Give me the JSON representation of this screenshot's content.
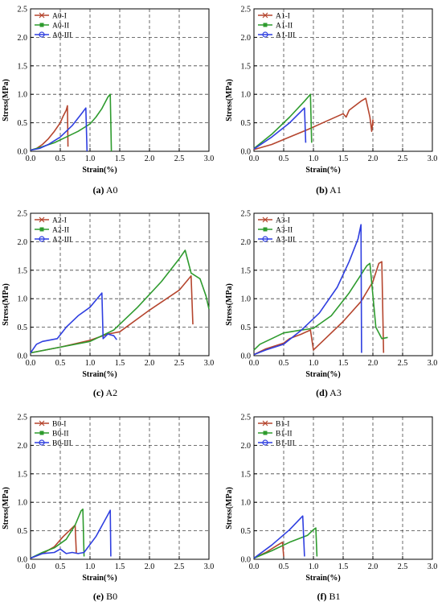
{
  "chart_data": [
    {
      "id": "A0",
      "type": "line",
      "caption_label": "(a)",
      "caption_name": "A0",
      "xlabel": "Strain(%)",
      "ylabel": "Stress(MPa)",
      "xlim": [
        0,
        3.0
      ],
      "ylim": [
        0,
        2.5
      ],
      "xticks": [
        "0.0",
        "0.5",
        "1.0",
        "1.5",
        "2.0",
        "2.5",
        "3.0"
      ],
      "yticks": [
        "0.0",
        "0.5",
        "1.0",
        "1.5",
        "2.0",
        "2.5"
      ],
      "grid": true,
      "legend_position": "top-left",
      "series": [
        {
          "name": "A0-I",
          "color": "#b5452e",
          "marker": "x",
          "points": [
            [
              0,
              0.02
            ],
            [
              0.1,
              0.05
            ],
            [
              0.2,
              0.12
            ],
            [
              0.3,
              0.22
            ],
            [
              0.4,
              0.35
            ],
            [
              0.5,
              0.5
            ],
            [
              0.55,
              0.62
            ],
            [
              0.6,
              0.72
            ],
            [
              0.62,
              0.8
            ],
            [
              0.63,
              0.08
            ]
          ]
        },
        {
          "name": "A0-II",
          "color": "#2e9b2e",
          "marker": "square",
          "points": [
            [
              0,
              0.02
            ],
            [
              0.2,
              0.08
            ],
            [
              0.4,
              0.15
            ],
            [
              0.6,
              0.25
            ],
            [
              0.8,
              0.35
            ],
            [
              1.0,
              0.48
            ],
            [
              1.1,
              0.6
            ],
            [
              1.2,
              0.75
            ],
            [
              1.3,
              0.95
            ],
            [
              1.34,
              1.0
            ],
            [
              1.36,
              0.0
            ]
          ]
        },
        {
          "name": "A0-III",
          "color": "#2f3fe0",
          "marker": "circle",
          "points": [
            [
              0,
              0.02
            ],
            [
              0.15,
              0.05
            ],
            [
              0.3,
              0.12
            ],
            [
              0.5,
              0.25
            ],
            [
              0.7,
              0.45
            ],
            [
              0.85,
              0.65
            ],
            [
              0.93,
              0.76
            ],
            [
              0.95,
              0.0
            ]
          ]
        }
      ]
    },
    {
      "id": "A1",
      "type": "line",
      "caption_label": "(b)",
      "caption_name": "A1",
      "xlabel": "Strain(%)",
      "ylabel": "Stress(MPa)",
      "xlim": [
        0,
        3.0
      ],
      "ylim": [
        0,
        2.5
      ],
      "xticks": [
        "0.0",
        "0.5",
        "1.0",
        "1.5",
        "2.0",
        "2.5",
        "3.0"
      ],
      "yticks": [
        "0.0",
        "0.5",
        "1.0",
        "1.5",
        "2.0",
        "2.5"
      ],
      "grid": true,
      "legend_position": "top-left",
      "series": [
        {
          "name": "A1-I",
          "color": "#b5452e",
          "marker": "x",
          "points": [
            [
              0,
              0.03
            ],
            [
              0.3,
              0.12
            ],
            [
              0.6,
              0.25
            ],
            [
              0.9,
              0.38
            ],
            [
              1.2,
              0.52
            ],
            [
              1.5,
              0.66
            ],
            [
              1.55,
              0.6
            ],
            [
              1.6,
              0.72
            ],
            [
              1.8,
              0.88
            ],
            [
              1.88,
              0.93
            ],
            [
              1.95,
              0.6
            ],
            [
              1.98,
              0.35
            ],
            [
              2.0,
              0.55
            ],
            [
              2.0,
              0.45
            ]
          ]
        },
        {
          "name": "A1-II",
          "color": "#2e9b2e",
          "marker": "square",
          "points": [
            [
              0,
              0.05
            ],
            [
              0.3,
              0.3
            ],
            [
              0.6,
              0.6
            ],
            [
              0.85,
              0.88
            ],
            [
              0.95,
              1.0
            ],
            [
              0.97,
              0.15
            ]
          ]
        },
        {
          "name": "A1-III",
          "color": "#2f3fe0",
          "marker": "circle",
          "points": [
            [
              0,
              0.04
            ],
            [
              0.3,
              0.25
            ],
            [
              0.6,
              0.5
            ],
            [
              0.85,
              0.76
            ],
            [
              0.87,
              0.15
            ]
          ]
        }
      ]
    },
    {
      "id": "A2",
      "type": "line",
      "caption_label": "(c)",
      "caption_name": "A2",
      "xlabel": "Strain(%)",
      "ylabel": "Stress(MPa)",
      "xlim": [
        0,
        3.0
      ],
      "ylim": [
        0,
        2.5
      ],
      "xticks": [
        "0.0",
        "0.5",
        "1.0",
        "1.5",
        "2.0",
        "2.5",
        "3.0"
      ],
      "yticks": [
        "0.0",
        "0.5",
        "1.0",
        "1.5",
        "2.0",
        "2.5"
      ],
      "grid": true,
      "legend_position": "top-left",
      "series": [
        {
          "name": "A2-I",
          "color": "#b5452e",
          "marker": "x",
          "points": [
            [
              0,
              0.05
            ],
            [
              0.5,
              0.15
            ],
            [
              1.0,
              0.27
            ],
            [
              1.3,
              0.38
            ],
            [
              1.5,
              0.42
            ],
            [
              2.0,
              0.8
            ],
            [
              2.5,
              1.15
            ],
            [
              2.7,
              1.4
            ],
            [
              2.73,
              0.55
            ]
          ]
        },
        {
          "name": "A2-II",
          "color": "#2e9b2e",
          "marker": "square",
          "points": [
            [
              0,
              0.05
            ],
            [
              0.5,
              0.15
            ],
            [
              1.0,
              0.25
            ],
            [
              1.4,
              0.45
            ],
            [
              1.8,
              0.85
            ],
            [
              2.2,
              1.3
            ],
            [
              2.5,
              1.7
            ],
            [
              2.6,
              1.85
            ],
            [
              2.7,
              1.45
            ],
            [
              2.85,
              1.35
            ],
            [
              2.95,
              1.05
            ],
            [
              3.0,
              0.82
            ]
          ]
        },
        {
          "name": "A2-III",
          "color": "#2f3fe0",
          "marker": "circle",
          "points": [
            [
              0,
              0.05
            ],
            [
              0.1,
              0.2
            ],
            [
              0.2,
              0.25
            ],
            [
              0.45,
              0.3
            ],
            [
              0.6,
              0.5
            ],
            [
              0.8,
              0.7
            ],
            [
              1.0,
              0.85
            ],
            [
              1.2,
              1.1
            ],
            [
              1.22,
              0.3
            ],
            [
              1.3,
              0.38
            ],
            [
              1.4,
              0.35
            ],
            [
              1.45,
              0.28
            ]
          ]
        }
      ]
    },
    {
      "id": "A3",
      "type": "line",
      "caption_label": "(d)",
      "caption_name": "A3",
      "xlabel": "Strain(%)",
      "ylabel": "Stress(MPa)",
      "xlim": [
        0,
        3.0
      ],
      "ylim": [
        0,
        2.5
      ],
      "xticks": [
        "0.0",
        "0.5",
        "1.0",
        "1.5",
        "2.0",
        "2.5",
        "3.0"
      ],
      "yticks": [
        "0.0",
        "0.5",
        "1.0",
        "1.5",
        "2.0",
        "2.5"
      ],
      "grid": true,
      "legend_position": "top-left",
      "series": [
        {
          "name": "A3-I",
          "color": "#b5452e",
          "marker": "x",
          "points": [
            [
              0,
              0.02
            ],
            [
              0.2,
              0.12
            ],
            [
              0.5,
              0.22
            ],
            [
              0.6,
              0.3
            ],
            [
              0.8,
              0.38
            ],
            [
              0.95,
              0.45
            ],
            [
              1.0,
              0.1
            ],
            [
              1.2,
              0.3
            ],
            [
              1.5,
              0.6
            ],
            [
              1.8,
              0.95
            ],
            [
              2.0,
              1.3
            ],
            [
              2.1,
              1.62
            ],
            [
              2.15,
              1.65
            ],
            [
              2.18,
              0.05
            ]
          ]
        },
        {
          "name": "A3-II",
          "color": "#2e9b2e",
          "marker": "square",
          "points": [
            [
              0,
              0.1
            ],
            [
              0.1,
              0.2
            ],
            [
              0.3,
              0.3
            ],
            [
              0.5,
              0.4
            ],
            [
              0.8,
              0.45
            ],
            [
              1.0,
              0.48
            ],
            [
              1.3,
              0.7
            ],
            [
              1.6,
              1.1
            ],
            [
              1.9,
              1.58
            ],
            [
              1.95,
              1.62
            ],
            [
              2.05,
              0.5
            ],
            [
              2.15,
              0.3
            ],
            [
              2.25,
              0.32
            ]
          ]
        },
        {
          "name": "A3-III",
          "color": "#2f3fe0",
          "marker": "circle",
          "points": [
            [
              0,
              0.02
            ],
            [
              0.2,
              0.1
            ],
            [
              0.5,
              0.2
            ],
            [
              0.8,
              0.45
            ],
            [
              1.1,
              0.75
            ],
            [
              1.4,
              1.2
            ],
            [
              1.6,
              1.65
            ],
            [
              1.75,
              2.05
            ],
            [
              1.8,
              2.3
            ],
            [
              1.81,
              0.05
            ]
          ]
        }
      ]
    },
    {
      "id": "B0",
      "type": "line",
      "caption_label": "(e)",
      "caption_name": "B0",
      "xlabel": "Strain(%)",
      "ylabel": "Stress(MPa)",
      "xlim": [
        0,
        3.0
      ],
      "ylim": [
        0,
        2.5
      ],
      "xticks": [
        "0.0",
        "0.5",
        "1.0",
        "1.5",
        "2.0",
        "2.5",
        "3.0"
      ],
      "yticks": [
        "0.0",
        "0.5",
        "1.0",
        "1.5",
        "2.0",
        "2.5"
      ],
      "grid": true,
      "legend_position": "top-left",
      "series": [
        {
          "name": "B0-I",
          "color": "#b5452e",
          "marker": "x",
          "points": [
            [
              0,
              0.02
            ],
            [
              0.2,
              0.1
            ],
            [
              0.4,
              0.22
            ],
            [
              0.55,
              0.4
            ],
            [
              0.7,
              0.55
            ],
            [
              0.75,
              0.6
            ],
            [
              0.77,
              0.1
            ]
          ]
        },
        {
          "name": "B0-II",
          "color": "#2e9b2e",
          "marker": "square",
          "points": [
            [
              0,
              0.02
            ],
            [
              0.2,
              0.12
            ],
            [
              0.4,
              0.2
            ],
            [
              0.6,
              0.35
            ],
            [
              0.75,
              0.6
            ],
            [
              0.85,
              0.85
            ],
            [
              0.88,
              0.88
            ],
            [
              0.9,
              0.05
            ]
          ]
        },
        {
          "name": "B0-III",
          "color": "#2f3fe0",
          "marker": "circle",
          "points": [
            [
              0,
              0.02
            ],
            [
              0.2,
              0.1
            ],
            [
              0.4,
              0.12
            ],
            [
              0.5,
              0.18
            ],
            [
              0.6,
              0.1
            ],
            [
              0.7,
              0.12
            ],
            [
              0.8,
              0.1
            ],
            [
              0.9,
              0.12
            ],
            [
              1.1,
              0.4
            ],
            [
              1.3,
              0.78
            ],
            [
              1.34,
              0.86
            ],
            [
              1.35,
              0.05
            ]
          ]
        }
      ]
    },
    {
      "id": "B1",
      "type": "line",
      "caption_label": "(f)",
      "caption_name": "B1",
      "xlabel": "Strain(%)",
      "ylabel": "Stress(MPa)",
      "xlim": [
        0,
        3.0
      ],
      "ylim": [
        0,
        2.5
      ],
      "xticks": [
        "0.0",
        "0.5",
        "1.0",
        "1.5",
        "2.0",
        "2.5",
        "3.0"
      ],
      "yticks": [
        "0.0",
        "0.5",
        "1.0",
        "1.5",
        "2.0",
        "2.5"
      ],
      "grid": true,
      "legend_position": "top-left",
      "series": [
        {
          "name": "B1-I",
          "color": "#b5452e",
          "marker": "x",
          "points": [
            [
              0,
              0.02
            ],
            [
              0.2,
              0.12
            ],
            [
              0.4,
              0.25
            ],
            [
              0.48,
              0.3
            ],
            [
              0.5,
              0.05
            ]
          ]
        },
        {
          "name": "B1-II",
          "color": "#2e9b2e",
          "marker": "square",
          "points": [
            [
              0,
              0.02
            ],
            [
              0.3,
              0.15
            ],
            [
              0.6,
              0.3
            ],
            [
              0.9,
              0.42
            ],
            [
              1.0,
              0.52
            ],
            [
              1.04,
              0.55
            ],
            [
              1.06,
              0.05
            ]
          ]
        },
        {
          "name": "B1-III",
          "color": "#2f3fe0",
          "marker": "circle",
          "points": [
            [
              0,
              0.02
            ],
            [
              0.3,
              0.25
            ],
            [
              0.6,
              0.52
            ],
            [
              0.82,
              0.76
            ],
            [
              0.85,
              0.05
            ]
          ]
        }
      ]
    }
  ]
}
